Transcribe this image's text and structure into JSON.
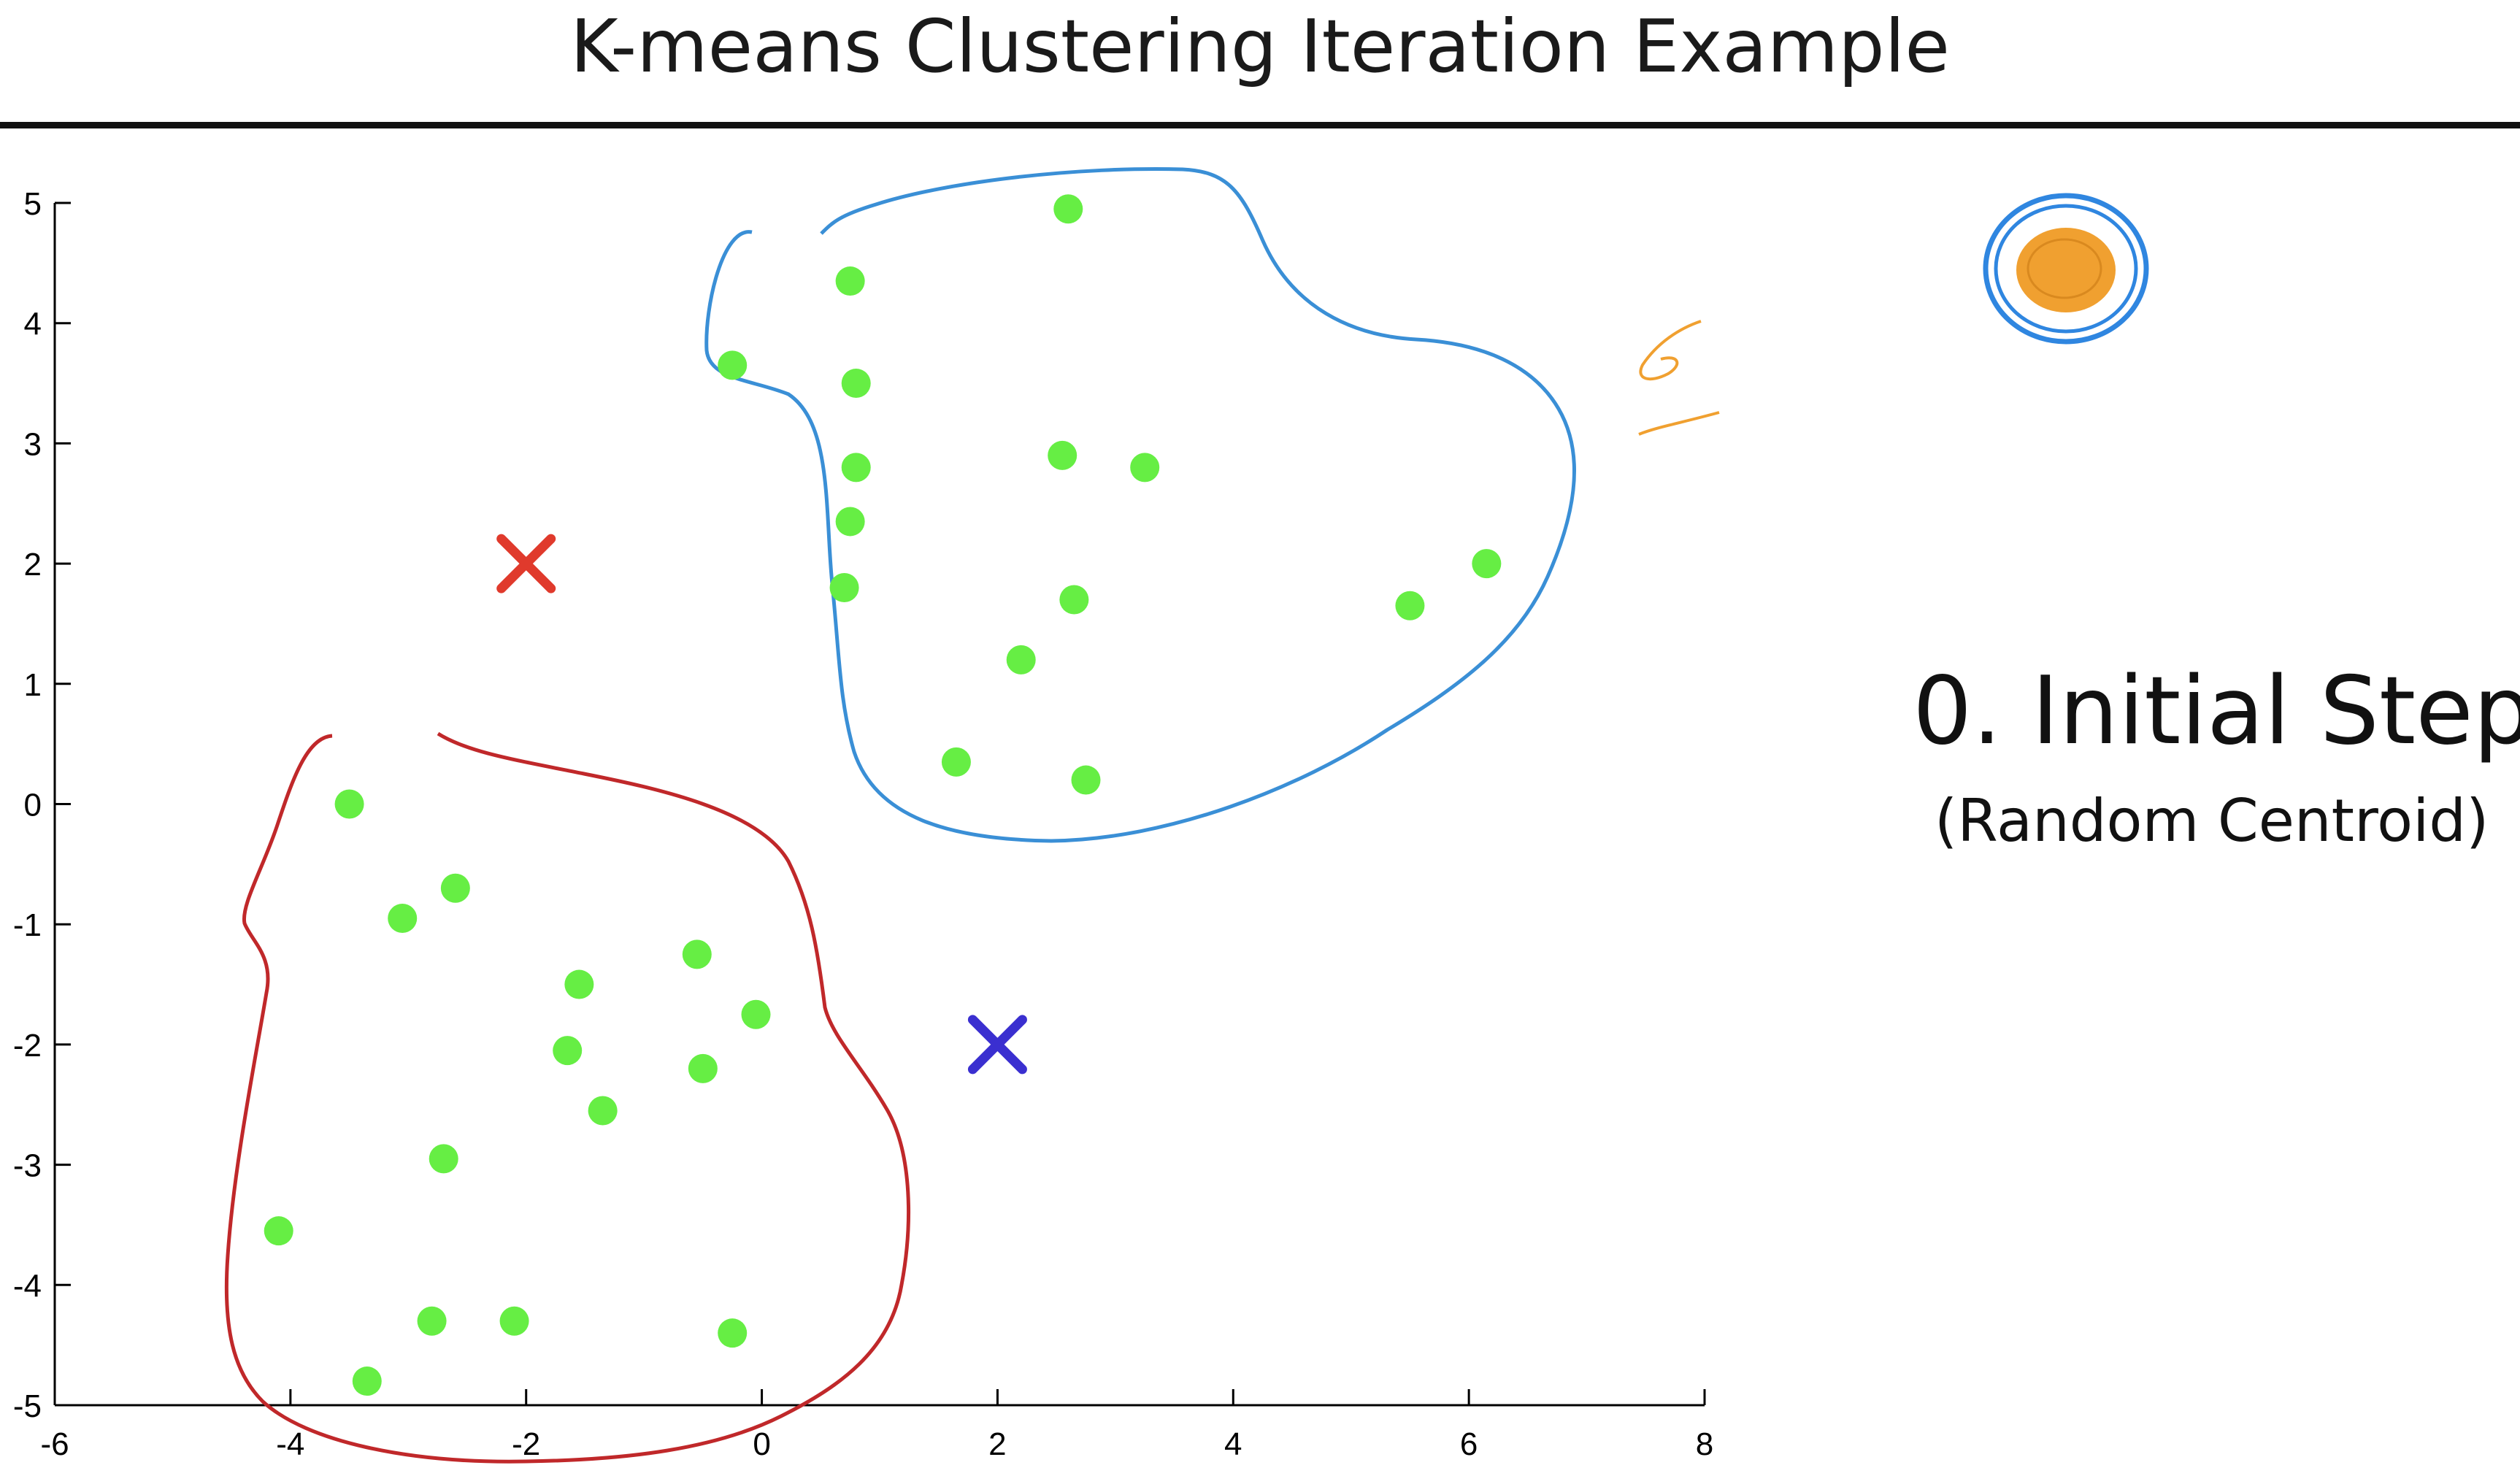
{
  "slide": {
    "title": "K-means Clustering Iteration Example",
    "step_title": "0. Initial Step",
    "step_subtitle": "(Random Centroid)"
  },
  "colors": {
    "points": "#66ee44",
    "centroid_1": "#e03a2c",
    "centroid_2": "#3a2fd0",
    "cluster_outline_blue": "#3a8fd6",
    "cluster_outline_red": "#c0282a",
    "annotation_orange": "#f0a030",
    "annotation_circle_blue": "#2f86e0"
  },
  "chart_data": {
    "type": "scatter",
    "xlim": [
      -6,
      8
    ],
    "ylim": [
      -5,
      5
    ],
    "x_ticks": [
      -6,
      -4,
      -2,
      0,
      2,
      4,
      6,
      8
    ],
    "y_ticks": [
      5,
      4,
      3,
      2,
      1,
      0,
      -1,
      -2,
      -3,
      -4,
      -5
    ],
    "grid": false,
    "series": [
      {
        "marker": "circle",
        "color": "#66ee44",
        "points": [
          [
            2.6,
            4.95
          ],
          [
            0.75,
            4.35
          ],
          [
            -0.25,
            3.65
          ],
          [
            0.8,
            3.5
          ],
          [
            0.8,
            2.8
          ],
          [
            2.55,
            2.9
          ],
          [
            3.25,
            2.8
          ],
          [
            0.75,
            2.35
          ],
          [
            0.7,
            1.8
          ],
          [
            2.65,
            1.7
          ],
          [
            5.5,
            1.65
          ],
          [
            6.15,
            2.0
          ],
          [
            2.2,
            1.2
          ],
          [
            1.65,
            0.35
          ],
          [
            2.75,
            0.2
          ],
          [
            -3.5,
            0.0
          ],
          [
            -2.6,
            -0.7
          ],
          [
            -3.05,
            -0.95
          ],
          [
            -0.55,
            -1.25
          ],
          [
            -1.55,
            -1.5
          ],
          [
            -0.05,
            -1.75
          ],
          [
            -1.65,
            -2.05
          ],
          [
            -0.5,
            -2.2
          ],
          [
            -1.35,
            -2.55
          ],
          [
            -2.7,
            -2.95
          ],
          [
            -4.1,
            -3.55
          ],
          [
            -2.8,
            -4.3
          ],
          [
            -2.1,
            -4.3
          ],
          [
            -0.25,
            -4.4
          ],
          [
            -3.35,
            -4.8
          ]
        ]
      },
      {
        "marker": "x",
        "color": "#e03a2c",
        "points": [
          [
            -2.0,
            2.0
          ]
        ]
      },
      {
        "marker": "x",
        "color": "#3a2fd0",
        "points": [
          [
            2.0,
            -2.0
          ]
        ]
      }
    ]
  }
}
